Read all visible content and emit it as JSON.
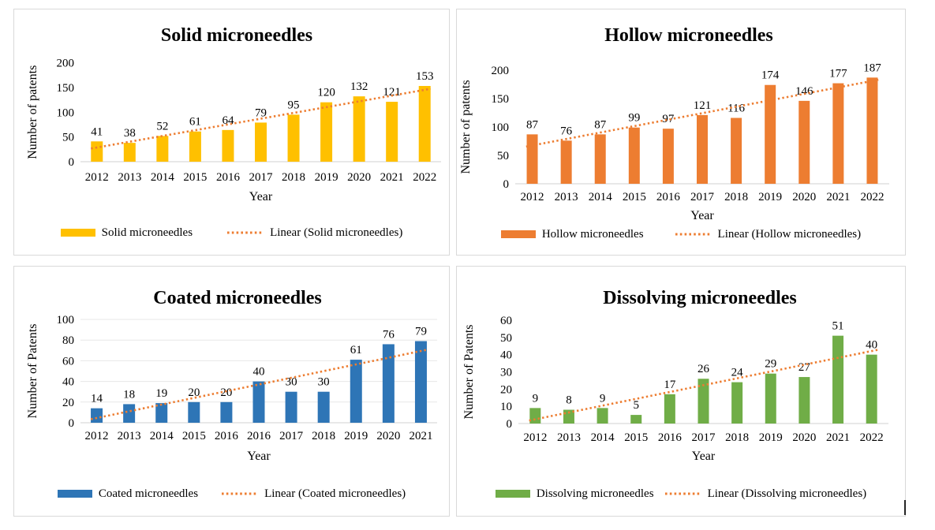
{
  "figure": {
    "background": "#FFFFFF",
    "panel_border_color": "#D9D9D9",
    "axis_line_color": "#D9D9D9",
    "gridline_color": "#E7E7E7",
    "text_color": "#000000"
  },
  "chart_data": [
    {
      "type": "bar",
      "title": "Solid microneedles",
      "ylabel": "Number of patents",
      "xlabel": "Year",
      "categories": [
        "2012",
        "2013",
        "2014",
        "2015",
        "2016",
        "2017",
        "2018",
        "2019",
        "2020",
        "2021",
        "2022"
      ],
      "values": [
        41,
        38,
        52,
        61,
        64,
        79,
        95,
        120,
        132,
        121,
        153
      ],
      "ylim": [
        0,
        200
      ],
      "yticks": [
        0,
        50,
        100,
        150,
        200
      ],
      "bar_color": "#FFC000",
      "gridlines": false,
      "data_labels": true,
      "trendline": {
        "type": "linear",
        "style": "dotted",
        "color": "#ED7D31"
      },
      "legend": {
        "series": "Solid microneedles",
        "trend": "Linear (Solid microneedles)",
        "position": "bottom"
      }
    },
    {
      "type": "bar",
      "title": "Hollow microneedles",
      "ylabel": "Number of patents",
      "xlabel": "Year",
      "categories": [
        "2012",
        "2013",
        "2014",
        "2015",
        "2016",
        "2017",
        "2018",
        "2019",
        "2020",
        "2021",
        "2022"
      ],
      "values": [
        87,
        76,
        87,
        99,
        97,
        121,
        116,
        174,
        146,
        177,
        187
      ],
      "ylim": [
        0,
        200
      ],
      "yticks": [
        0,
        50,
        100,
        150,
        200
      ],
      "bar_color": "#ED7D31",
      "gridlines": false,
      "data_labels": true,
      "trendline": {
        "type": "linear",
        "style": "dotted",
        "color": "#ED7D31"
      },
      "legend": {
        "series": "Hollow microneedles",
        "trend": "Linear (Hollow microneedles)",
        "position": "bottom"
      }
    },
    {
      "type": "bar",
      "title": "Coated microneedles",
      "ylabel": "Number of Patents",
      "xlabel": "Year",
      "categories": [
        "2012",
        "2013",
        "2014",
        "2015",
        "2016",
        "2016",
        "2017",
        "2018",
        "2019",
        "2020",
        "2021"
      ],
      "values": [
        14,
        18,
        19,
        20,
        20,
        40,
        30,
        30,
        61,
        76,
        79
      ],
      "ylim": [
        0,
        100
      ],
      "yticks": [
        0,
        20,
        40,
        60,
        80,
        100
      ],
      "bar_color": "#2E75B6",
      "gridlines": true,
      "data_labels": true,
      "trendline": {
        "type": "linear",
        "style": "dotted",
        "color": "#ED7D31"
      },
      "legend": {
        "series": "Coated microneedles",
        "trend": "Linear (Coated microneedles)",
        "position": "bottom"
      }
    },
    {
      "type": "bar",
      "title": "Dissolving microneedles",
      "ylabel": "Number of Patents",
      "xlabel": "Year",
      "categories": [
        "2012",
        "2013",
        "2014",
        "2015",
        "2016",
        "2017",
        "2018",
        "2019",
        "2020",
        "2021",
        "2022"
      ],
      "values": [
        9,
        8,
        9,
        5,
        17,
        26,
        24,
        29,
        27,
        51,
        40
      ],
      "ylim": [
        0,
        60
      ],
      "yticks": [
        0,
        10,
        20,
        30,
        40,
        50,
        60
      ],
      "bar_color": "#70AD47",
      "gridlines": false,
      "data_labels": true,
      "trendline": {
        "type": "linear",
        "style": "dotted",
        "color": "#ED7D31"
      },
      "legend": {
        "series": "Dissolving microneedles",
        "trend": "Linear (Dissolving microneedles)",
        "position": "bottom"
      }
    }
  ]
}
